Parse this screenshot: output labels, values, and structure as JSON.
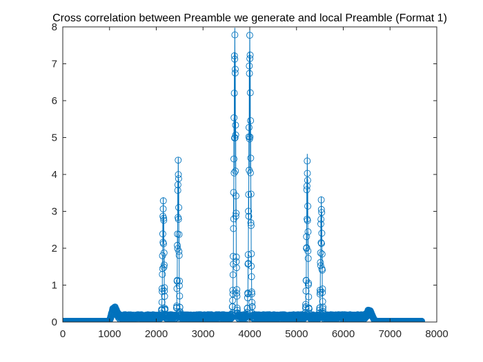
{
  "chart_data": {
    "type": "scatter",
    "title": "Cross correlation between Preamble we generate and local Preamble (Format 1)",
    "xlabel": "",
    "ylabel": "",
    "xlim": [
      0,
      8000
    ],
    "ylim": [
      0,
      8
    ],
    "xticks": [
      0,
      1000,
      2000,
      3000,
      4000,
      5000,
      6000,
      7000,
      8000
    ],
    "yticks": [
      0,
      1,
      2,
      3,
      4,
      5,
      6,
      7,
      8
    ],
    "grid": false,
    "legend": "none",
    "marker": "circle-open",
    "line": "solid",
    "color": "#0072BD",
    "n_points": 7680,
    "baseline": 0.02,
    "noise_region": [
      1000,
      6600
    ],
    "noise_level": 0.18,
    "peaks": [
      {
        "x": 1100,
        "y": 0.38,
        "width": 90
      },
      {
        "x": 2150,
        "y": 3.3,
        "width": 30
      },
      {
        "x": 2470,
        "y": 4.4,
        "width": 30
      },
      {
        "x": 3680,
        "y": 7.9,
        "width": 40
      },
      {
        "x": 4000,
        "y": 7.9,
        "width": 40
      },
      {
        "x": 5230,
        "y": 4.4,
        "width": 30
      },
      {
        "x": 5530,
        "y": 3.3,
        "width": 30
      },
      {
        "x": 6580,
        "y": 0.38,
        "width": 90
      }
    ]
  }
}
